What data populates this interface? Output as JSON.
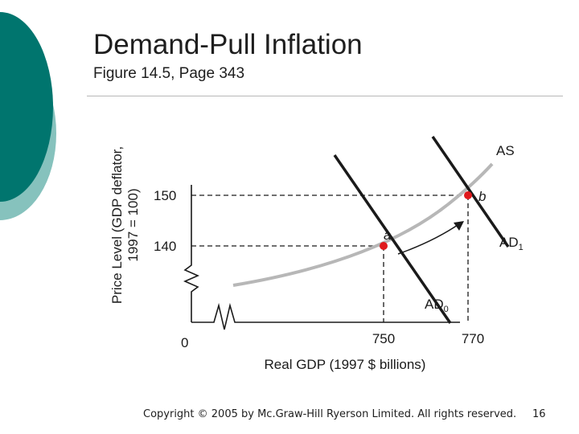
{
  "slide": {
    "title": "Demand-Pull Inflation",
    "subtitle": "Figure 14.5, Page 343",
    "copyright": "Copyright © 2005 by Mc.Graw-Hill Ryerson Limited. All rights reserved.",
    "page_number": "16"
  },
  "colors": {
    "teal_dark": "#00756e",
    "teal_light": "#86c2bd",
    "curve": "#1a1a1a",
    "as_curve": "#b7b7b7",
    "point": "#e0191c"
  },
  "chart_data": {
    "type": "line",
    "ylabel": [
      "Price Level (GDP deflator,",
      "1997 = 100)"
    ],
    "xlabel": "Real GDP (1997 $ billions)",
    "x_ticks": [
      "0",
      "750",
      "770"
    ],
    "y_ticks": [
      "150",
      "140"
    ],
    "series": [
      {
        "name": "AS",
        "label": "AS"
      },
      {
        "name": "AD0",
        "label": "AD",
        "subscript": "0"
      },
      {
        "name": "AD1",
        "label": "AD",
        "subscript": "1"
      }
    ],
    "points": [
      {
        "label": "a",
        "x": 750,
        "y": 140
      },
      {
        "label": "b",
        "x": 770,
        "y": 150
      }
    ],
    "annotations": [
      "shift arrow from AD0 to AD1"
    ],
    "axis_breaks": [
      "x",
      "y"
    ]
  }
}
